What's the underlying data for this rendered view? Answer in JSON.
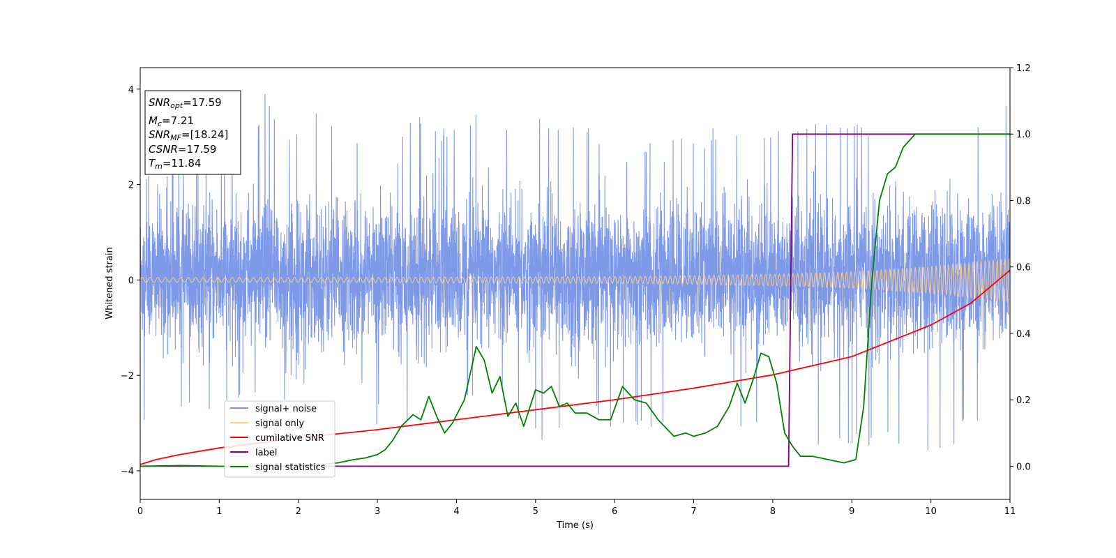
{
  "chart_data": {
    "type": "line",
    "xlabel": "Time (s)",
    "ylabel": "Whitened strain",
    "xlim": [
      0,
      11
    ],
    "ylim": [
      -4.6,
      4.45
    ],
    "y2lim": [
      -0.1,
      1.2
    ],
    "x_ticks": [
      0,
      1,
      2,
      3,
      4,
      5,
      6,
      7,
      8,
      9,
      10,
      11
    ],
    "y_ticks": [
      -4,
      -2,
      0,
      2,
      4
    ],
    "y2_ticks": [
      0.0,
      0.2,
      0.4,
      0.6,
      0.8,
      1.0,
      1.2
    ],
    "grid": false,
    "legend_position": "lower-left",
    "info_box": {
      "snr_opt": {
        "base": "SNR",
        "sub": "opt",
        "value": "=17.59"
      },
      "mc": {
        "base": "M",
        "sub": "c",
        "value": "=7.21"
      },
      "snr_mf": {
        "base": "SNR",
        "sub": "MF",
        "value": "=[18.24]"
      },
      "csnr": {
        "base": "CSNR",
        "value": "=17.59"
      },
      "tm": {
        "base": "T",
        "sub": "m",
        "value": "=11.84"
      }
    },
    "series": [
      {
        "name": "signal+ noise",
        "axis": "left",
        "color": "#7893e8",
        "description_range": [
          -4.0,
          4.05
        ],
        "peaks": [
          [
            0.3,
            2.3
          ],
          [
            0.55,
            2.6
          ],
          [
            0.8,
            3.1
          ],
          [
            1.1,
            3.2
          ],
          [
            1.35,
            2.9
          ],
          [
            1.58,
            4.05
          ],
          [
            1.72,
            3.3
          ],
          [
            2.0,
            3.2
          ],
          [
            2.26,
            3.95
          ],
          [
            2.55,
            3.0
          ],
          [
            2.85,
            3.1
          ],
          [
            3.1,
            3.05
          ],
          [
            3.5,
            3.5
          ],
          [
            3.8,
            3.2
          ],
          [
            4.2,
            3.6
          ],
          [
            4.55,
            3.35
          ],
          [
            4.82,
            3.65
          ],
          [
            5.3,
            3.2
          ],
          [
            5.65,
            3.2
          ],
          [
            6.05,
            3.55
          ],
          [
            6.4,
            3.0
          ],
          [
            6.8,
            3.2
          ],
          [
            7.0,
            3.05
          ],
          [
            7.45,
            3.3
          ],
          [
            7.85,
            3.3
          ],
          [
            8.2,
            3.2
          ],
          [
            8.6,
            3.4
          ],
          [
            8.9,
            3.2
          ],
          [
            9.3,
            3.5
          ],
          [
            9.65,
            3.2
          ],
          [
            10.1,
            3.5
          ],
          [
            10.55,
            3.2
          ],
          [
            10.92,
            3.7
          ]
        ],
        "troughs": [
          [
            0.05,
            -3.1
          ],
          [
            0.2,
            -2.85
          ],
          [
            0.55,
            -2.9
          ],
          [
            0.8,
            -2.9
          ],
          [
            1.0,
            -2.7
          ],
          [
            1.35,
            -2.7
          ],
          [
            1.8,
            -2.55
          ],
          [
            2.0,
            -2.3
          ],
          [
            2.6,
            -2.4
          ],
          [
            3.1,
            -3.45
          ],
          [
            3.45,
            -3.3
          ],
          [
            3.9,
            -2.7
          ],
          [
            4.3,
            -2.6
          ],
          [
            4.75,
            -2.9
          ],
          [
            5.07,
            -3.65
          ],
          [
            5.55,
            -2.7
          ],
          [
            6.0,
            -3.2
          ],
          [
            6.35,
            -3.05
          ],
          [
            6.75,
            -3.35
          ],
          [
            6.92,
            -3.6
          ],
          [
            7.35,
            -3.5
          ],
          [
            7.7,
            -3.25
          ],
          [
            8.05,
            -2.9
          ],
          [
            8.4,
            -3.5
          ],
          [
            8.63,
            -3.98
          ],
          [
            9.1,
            -3.5
          ],
          [
            9.45,
            -3.4
          ],
          [
            9.85,
            -3.6
          ],
          [
            10.05,
            -3.9
          ],
          [
            10.5,
            -3.1
          ],
          [
            10.95,
            -3.05
          ]
        ]
      },
      {
        "name": "signal only",
        "axis": "left",
        "color": "#ffd089",
        "envelope": [
          [
            0,
            0.05
          ],
          [
            2,
            0.05
          ],
          [
            4,
            0.06
          ],
          [
            6,
            0.07
          ],
          [
            7,
            0.09
          ],
          [
            8,
            0.12
          ],
          [
            9,
            0.17
          ],
          [
            10,
            0.28
          ],
          [
            11,
            0.45
          ]
        ]
      },
      {
        "name": "cumilative SNR",
        "axis": "right",
        "color": "#ff0000",
        "x": [
          0,
          0.2,
          0.5,
          1,
          2,
          3,
          4,
          5,
          6,
          7,
          8,
          9,
          10,
          10.5,
          11
        ],
        "y": [
          0.005,
          0.02,
          0.035,
          0.055,
          0.085,
          0.11,
          0.14,
          0.17,
          0.2,
          0.235,
          0.275,
          0.33,
          0.425,
          0.49,
          0.59
        ]
      },
      {
        "name": "label",
        "axis": "right",
        "color": "#800080",
        "x": [
          0,
          8.2,
          8.25,
          11
        ],
        "y": [
          0.0,
          0.0,
          1.0,
          1.0
        ]
      },
      {
        "name": "signal statistics",
        "axis": "right",
        "color": "#008000",
        "x": [
          0,
          0.5,
          1,
          1.5,
          2,
          2.3,
          2.5,
          2.7,
          2.85,
          3.0,
          3.1,
          3.2,
          3.3,
          3.45,
          3.55,
          3.65,
          3.75,
          3.85,
          3.95,
          4.1,
          4.25,
          4.35,
          4.45,
          4.55,
          4.65,
          4.75,
          4.85,
          5.0,
          5.1,
          5.2,
          5.3,
          5.4,
          5.5,
          5.65,
          5.8,
          5.95,
          6.1,
          6.25,
          6.4,
          6.55,
          6.75,
          6.9,
          7.0,
          7.15,
          7.3,
          7.45,
          7.55,
          7.65,
          7.75,
          7.85,
          7.95,
          8.05,
          8.15,
          8.25,
          8.35,
          8.5,
          8.7,
          8.9,
          9.05,
          9.15,
          9.25,
          9.35,
          9.45,
          9.55,
          9.65,
          9.8,
          10.0,
          10.2,
          10.4,
          10.6,
          10.8,
          11.0
        ],
        "y": [
          0.0,
          0.002,
          0.0,
          0.0,
          0.0,
          0.005,
          0.01,
          0.02,
          0.025,
          0.035,
          0.05,
          0.08,
          0.12,
          0.155,
          0.14,
          0.21,
          0.15,
          0.1,
          0.13,
          0.2,
          0.36,
          0.32,
          0.22,
          0.27,
          0.15,
          0.19,
          0.12,
          0.23,
          0.22,
          0.24,
          0.18,
          0.19,
          0.16,
          0.16,
          0.14,
          0.14,
          0.24,
          0.2,
          0.19,
          0.14,
          0.09,
          0.1,
          0.09,
          0.1,
          0.12,
          0.18,
          0.25,
          0.19,
          0.26,
          0.34,
          0.33,
          0.25,
          0.1,
          0.06,
          0.03,
          0.03,
          0.02,
          0.01,
          0.02,
          0.18,
          0.55,
          0.8,
          0.88,
          0.9,
          0.96,
          1.0,
          1.0,
          1.0,
          1.0,
          1.0,
          1.0,
          1.0
        ]
      }
    ]
  }
}
